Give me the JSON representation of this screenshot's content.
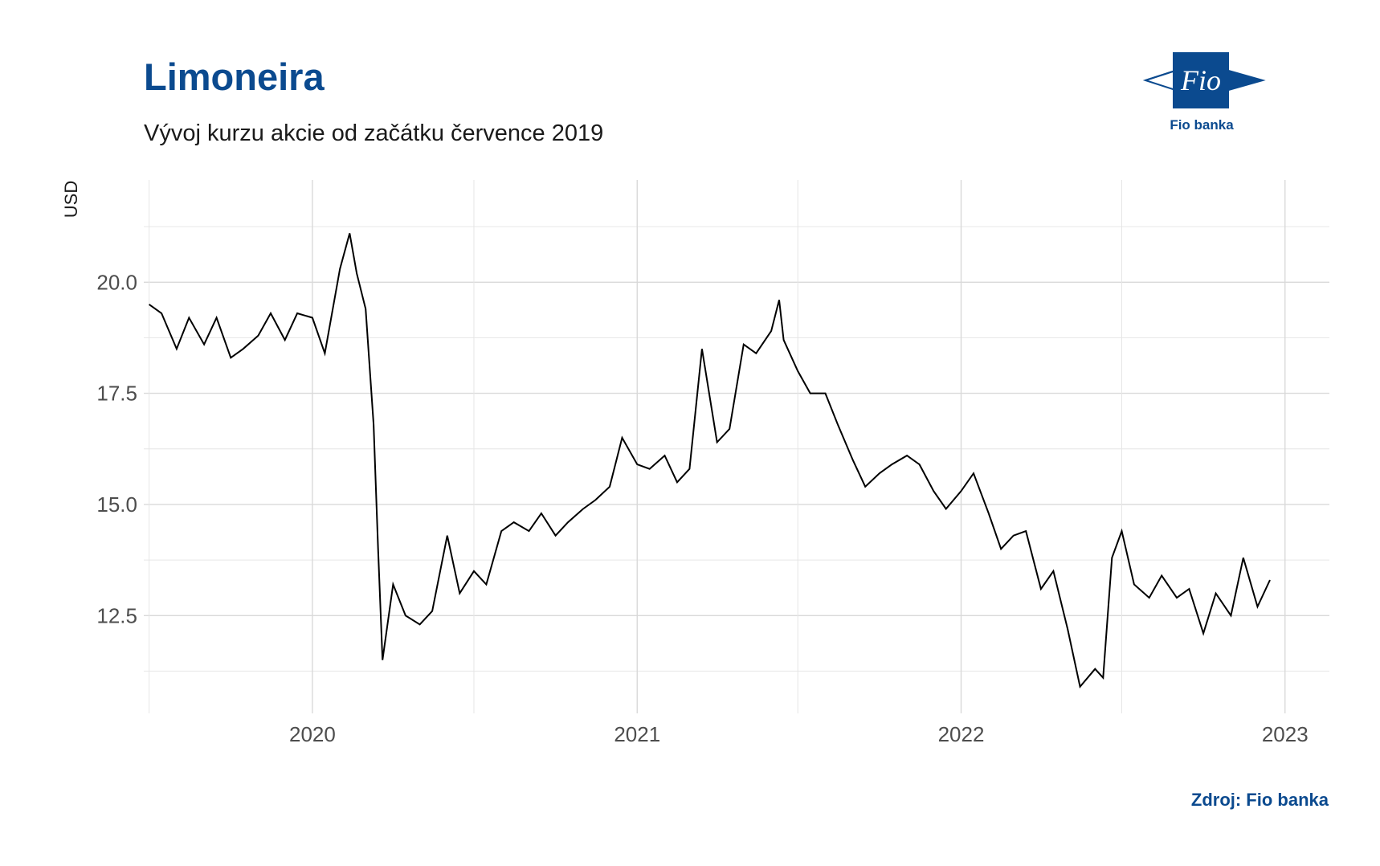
{
  "header": {
    "title": "Limoneira",
    "subtitle": "Vývoj kurzu akcie od začátku července 2019"
  },
  "logo": {
    "mark_text": "Fio",
    "caption": "Fio banka",
    "brand_color": "#0b4a8f"
  },
  "footer": {
    "source": "Zdroj: Fio banka"
  },
  "chart_data": {
    "type": "line",
    "title": "",
    "xlabel": "",
    "ylabel": "USD",
    "xlim": [
      "2019-06-25",
      "2023-02-20"
    ],
    "ylim": [
      10.3,
      22.3
    ],
    "grid": true,
    "line_color": "#000000",
    "x_ticks": [
      "2020",
      "2021",
      "2022",
      "2023"
    ],
    "y_ticks": [
      "12.5",
      "15.0",
      "17.5",
      "20.0"
    ],
    "series": [
      {
        "x": [
          "2019-07-01",
          "2019-07-15",
          "2019-08-01",
          "2019-08-15",
          "2019-09-01",
          "2019-09-15",
          "2019-10-01",
          "2019-10-15",
          "2019-11-01",
          "2019-11-15",
          "2019-12-01",
          "2019-12-15",
          "2020-01-01",
          "2020-01-15",
          "2020-02-01",
          "2020-02-12",
          "2020-02-20",
          "2020-03-01",
          "2020-03-10",
          "2020-03-15",
          "2020-03-20",
          "2020-04-01",
          "2020-04-15",
          "2020-05-01",
          "2020-05-15",
          "2020-06-01",
          "2020-06-15",
          "2020-07-01",
          "2020-07-15",
          "2020-08-01",
          "2020-08-15",
          "2020-09-01",
          "2020-09-15",
          "2020-10-01",
          "2020-10-15",
          "2020-11-01",
          "2020-11-15",
          "2020-12-01",
          "2020-12-15",
          "2021-01-01",
          "2021-01-15",
          "2021-02-01",
          "2021-02-15",
          "2021-03-01",
          "2021-03-15",
          "2021-04-01",
          "2021-04-15",
          "2021-05-01",
          "2021-05-15",
          "2021-06-01",
          "2021-06-10",
          "2021-06-15",
          "2021-07-01",
          "2021-07-15",
          "2021-08-01",
          "2021-08-15",
          "2021-09-01",
          "2021-09-15",
          "2021-10-01",
          "2021-10-15",
          "2021-11-01",
          "2021-11-15",
          "2021-12-01",
          "2021-12-15",
          "2022-01-01",
          "2022-01-15",
          "2022-02-01",
          "2022-02-15",
          "2022-03-01",
          "2022-03-15",
          "2022-04-01",
          "2022-04-15",
          "2022-05-01",
          "2022-05-15",
          "2022-06-01",
          "2022-06-10",
          "2022-06-20",
          "2022-07-01",
          "2022-07-15",
          "2022-08-01",
          "2022-08-15",
          "2022-09-01",
          "2022-09-15",
          "2022-10-01",
          "2022-10-15",
          "2022-11-01",
          "2022-11-15",
          "2022-12-01",
          "2022-12-15"
        ],
        "y": [
          19.5,
          19.3,
          18.5,
          19.2,
          18.6,
          19.2,
          18.3,
          18.5,
          18.8,
          19.3,
          18.7,
          19.3,
          19.2,
          18.4,
          20.3,
          21.1,
          20.2,
          19.4,
          16.8,
          14.0,
          11.5,
          13.2,
          12.5,
          12.3,
          12.6,
          14.3,
          13.0,
          13.5,
          13.2,
          14.4,
          14.6,
          14.4,
          14.8,
          14.3,
          14.6,
          14.9,
          15.1,
          15.4,
          16.5,
          15.9,
          15.8,
          16.1,
          15.5,
          15.8,
          18.5,
          16.4,
          16.7,
          18.6,
          18.4,
          18.9,
          19.6,
          18.7,
          18.0,
          17.5,
          17.5,
          16.8,
          16.0,
          15.4,
          15.7,
          15.9,
          16.1,
          15.9,
          15.3,
          14.9,
          15.3,
          15.7,
          14.8,
          14.0,
          14.3,
          14.4,
          13.1,
          13.5,
          12.2,
          10.9,
          11.3,
          11.1,
          13.8,
          14.4,
          13.2,
          12.9,
          13.4,
          12.9,
          13.1,
          12.1,
          13.0,
          12.5,
          13.8,
          12.7,
          13.3
        ]
      }
    ]
  }
}
